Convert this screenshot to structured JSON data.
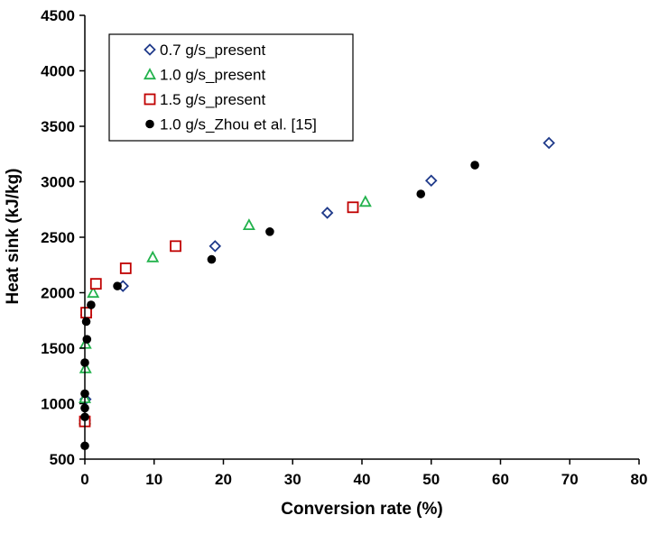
{
  "chart_data": {
    "type": "scatter",
    "xlabel": "Conversion rate (%)",
    "ylabel": "Heat sink (kJ/kg)",
    "xlim": [
      0,
      80
    ],
    "ylim": [
      500,
      4500
    ],
    "xticks": [
      0,
      10,
      20,
      30,
      40,
      50,
      60,
      70,
      80
    ],
    "yticks": [
      500,
      1000,
      1500,
      2000,
      2500,
      3000,
      3500,
      4000,
      4500
    ],
    "grid": false,
    "legend_position": "top-left",
    "series": [
      {
        "name": "0.7 g/s_present",
        "marker": "diamond-open",
        "color": "#1f3a8a",
        "points": [
          [
            0.0,
            850
          ],
          [
            0.1,
            1040
          ],
          [
            0.2,
            1800
          ],
          [
            5.5,
            2060
          ],
          [
            18.8,
            2420
          ],
          [
            35.0,
            2720
          ],
          [
            50.0,
            3010
          ],
          [
            67.0,
            3350
          ]
        ]
      },
      {
        "name": "1.0 g/s_present",
        "marker": "triangle-open",
        "color": "#22b24c",
        "points": [
          [
            0.0,
            860
          ],
          [
            0.0,
            1050
          ],
          [
            0.1,
            1320
          ],
          [
            0.1,
            1540
          ],
          [
            1.2,
            2000
          ],
          [
            9.8,
            2320
          ],
          [
            23.7,
            2610
          ],
          [
            40.5,
            2820
          ]
        ]
      },
      {
        "name": "1.5 g/s_present",
        "marker": "square-open",
        "color": "#c00000",
        "points": [
          [
            0.0,
            840
          ],
          [
            0.2,
            1820
          ],
          [
            1.6,
            2080
          ],
          [
            5.9,
            2220
          ],
          [
            13.1,
            2420
          ],
          [
            38.7,
            2770
          ]
        ]
      },
      {
        "name": "1.0 g/s_Zhou et al. [15]",
        "marker": "circle-filled",
        "color": "#000000",
        "points": [
          [
            0.0,
            620
          ],
          [
            0.0,
            880
          ],
          [
            0.0,
            960
          ],
          [
            0.0,
            1090
          ],
          [
            0.0,
            1370
          ],
          [
            0.3,
            1580
          ],
          [
            0.2,
            1740
          ],
          [
            0.9,
            1890
          ],
          [
            4.7,
            2060
          ],
          [
            18.3,
            2300
          ],
          [
            26.7,
            2550
          ],
          [
            48.5,
            2890
          ],
          [
            56.3,
            3150
          ]
        ]
      }
    ]
  }
}
